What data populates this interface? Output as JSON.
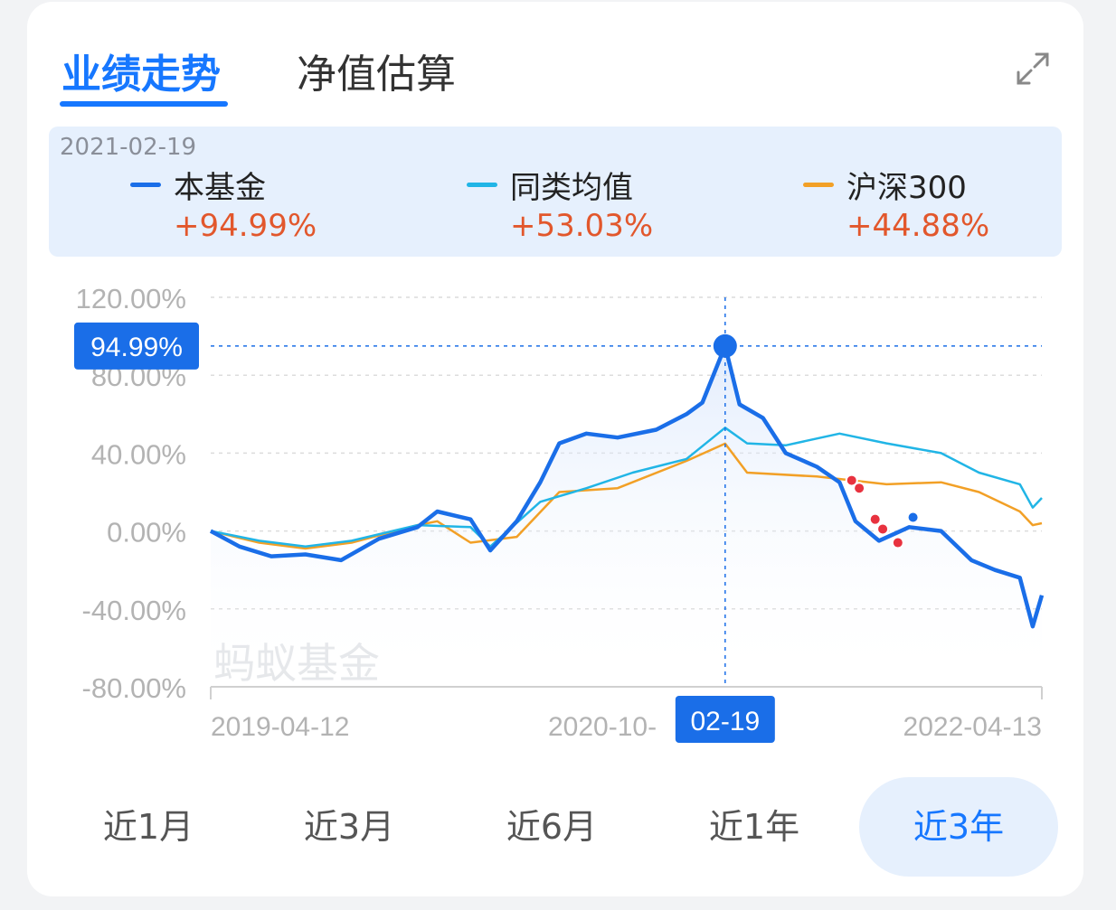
{
  "tabs": [
    {
      "label": "业绩走势",
      "active": true
    },
    {
      "label": "净值估算",
      "active": false
    }
  ],
  "legend": {
    "date": "2021-02-19",
    "items": [
      {
        "name": "本基金",
        "value": "+94.99%",
        "color": "#1a6ee8"
      },
      {
        "name": "同类均值",
        "value": "+53.03%",
        "color": "#21b5e6"
      },
      {
        "name": "沪深300",
        "value": "+44.88%",
        "color": "#f2a026"
      }
    ]
  },
  "range_buttons": [
    {
      "label": "近1月",
      "active": false
    },
    {
      "label": "近3月",
      "active": false
    },
    {
      "label": "近6月",
      "active": false
    },
    {
      "label": "近1年",
      "active": false
    },
    {
      "label": "近3年",
      "active": true
    }
  ],
  "watermark": "蚂蚁基金",
  "colors": {
    "accent": "#1677ff",
    "positive": "#e2572c",
    "marker": "#e8323f"
  },
  "chart_data": {
    "type": "line",
    "xlim": [
      "2019-04-12",
      "2022-04-13"
    ],
    "x_ticks": [
      "2019-04-12",
      "2020-10-",
      "2022-04-13"
    ],
    "y_ticks": [
      "120.00%",
      "80.00%",
      "40.00%",
      "0.00%",
      "-40.00%",
      "-80.00%"
    ],
    "ylim": [
      -80,
      120
    ],
    "grid": true,
    "crosshair": {
      "date": "2021-02-19",
      "value": 94.99,
      "x_label": "02-19",
      "y_label": "94.99%"
    },
    "series": [
      {
        "name": "本基金",
        "color": "#1a6ee8",
        "points": [
          [
            "2019-04-12",
            0
          ],
          [
            "2019-05-20",
            -8
          ],
          [
            "2019-07-01",
            -13
          ],
          [
            "2019-08-15",
            -12
          ],
          [
            "2019-10-01",
            -15
          ],
          [
            "2019-11-20",
            -4
          ],
          [
            "2020-01-10",
            2
          ],
          [
            "2020-02-05",
            10
          ],
          [
            "2020-03-20",
            6
          ],
          [
            "2020-04-15",
            -10
          ],
          [
            "2020-05-20",
            5
          ],
          [
            "2020-06-20",
            25
          ],
          [
            "2020-07-15",
            45
          ],
          [
            "2020-08-20",
            50
          ],
          [
            "2020-09-30",
            48
          ],
          [
            "2020-11-20",
            52
          ],
          [
            "2020-12-30",
            60
          ],
          [
            "2021-01-20",
            66
          ],
          [
            "2021-02-19",
            94.99
          ],
          [
            "2021-03-10",
            65
          ],
          [
            "2021-04-10",
            58
          ],
          [
            "2021-05-10",
            40
          ],
          [
            "2021-06-20",
            33
          ],
          [
            "2021-07-20",
            25
          ],
          [
            "2021-08-10",
            5
          ],
          [
            "2021-09-10",
            -5
          ],
          [
            "2021-10-20",
            2
          ],
          [
            "2021-12-01",
            0
          ],
          [
            "2022-01-10",
            -15
          ],
          [
            "2022-02-10",
            -20
          ],
          [
            "2022-03-15",
            -24
          ],
          [
            "2022-04-01",
            -49
          ],
          [
            "2022-04-13",
            -33
          ]
        ]
      },
      {
        "name": "同类均值",
        "color": "#21b5e6",
        "points": [
          [
            "2019-04-12",
            0
          ],
          [
            "2019-06-15",
            -5
          ],
          [
            "2019-08-15",
            -8
          ],
          [
            "2019-10-15",
            -5
          ],
          [
            "2020-01-10",
            3
          ],
          [
            "2020-03-20",
            2
          ],
          [
            "2020-04-15",
            -8
          ],
          [
            "2020-06-20",
            15
          ],
          [
            "2020-08-20",
            22
          ],
          [
            "2020-10-20",
            30
          ],
          [
            "2020-12-30",
            37
          ],
          [
            "2021-02-19",
            53.03
          ],
          [
            "2021-03-20",
            45
          ],
          [
            "2021-05-10",
            44
          ],
          [
            "2021-07-20",
            50
          ],
          [
            "2021-09-20",
            45
          ],
          [
            "2021-12-01",
            40
          ],
          [
            "2022-01-20",
            30
          ],
          [
            "2022-03-15",
            24
          ],
          [
            "2022-04-01",
            12
          ],
          [
            "2022-04-13",
            17
          ]
        ]
      },
      {
        "name": "沪深300",
        "color": "#f2a026",
        "points": [
          [
            "2019-04-12",
            0
          ],
          [
            "2019-06-15",
            -6
          ],
          [
            "2019-08-15",
            -9
          ],
          [
            "2019-10-15",
            -6
          ],
          [
            "2020-01-10",
            3
          ],
          [
            "2020-02-05",
            5
          ],
          [
            "2020-03-20",
            -6
          ],
          [
            "2020-05-20",
            -3
          ],
          [
            "2020-07-15",
            20
          ],
          [
            "2020-09-30",
            22
          ],
          [
            "2020-12-30",
            36
          ],
          [
            "2021-02-19",
            44.88
          ],
          [
            "2021-03-20",
            30
          ],
          [
            "2021-06-20",
            28
          ],
          [
            "2021-09-20",
            24
          ],
          [
            "2021-12-01",
            25
          ],
          [
            "2022-01-20",
            20
          ],
          [
            "2022-03-15",
            10
          ],
          [
            "2022-04-01",
            3
          ],
          [
            "2022-04-13",
            4
          ]
        ]
      }
    ],
    "markers": [
      {
        "date": "2021-08-05",
        "value": 26,
        "color": "#e8323f"
      },
      {
        "date": "2021-08-15",
        "value": 22,
        "color": "#e8323f"
      },
      {
        "date": "2021-09-05",
        "value": 6,
        "color": "#e8323f"
      },
      {
        "date": "2021-09-15",
        "value": 1,
        "color": "#e8323f"
      },
      {
        "date": "2021-10-05",
        "value": -6,
        "color": "#e8323f"
      },
      {
        "date": "2021-10-25",
        "value": 7,
        "color": "#1a6ee8"
      }
    ]
  }
}
